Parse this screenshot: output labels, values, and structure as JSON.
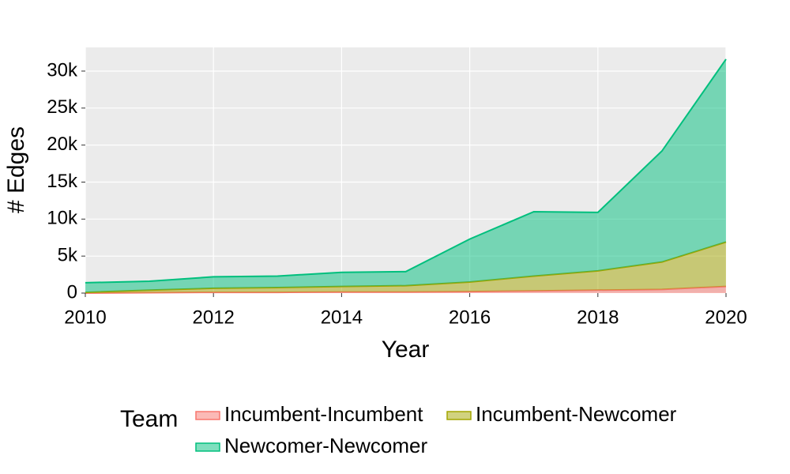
{
  "chart_data": {
    "type": "area",
    "stacked": true,
    "x_label": "Year",
    "y_label": "# Edges",
    "x": [
      2010,
      2011,
      2012,
      2013,
      2014,
      2015,
      2016,
      2017,
      2018,
      2019,
      2020
    ],
    "series": [
      {
        "name": "Incumbent-Incumbent",
        "color": "#F8766D",
        "values": [
          0,
          50,
          100,
          100,
          150,
          150,
          200,
          300,
          400,
          500,
          900
        ]
      },
      {
        "name": "Incumbent-Newcomer",
        "color": "#A3A500",
        "values": [
          100,
          350,
          550,
          650,
          750,
          850,
          1300,
          2000,
          2600,
          3700,
          6000
        ]
      },
      {
        "name": "Newcomer-Newcomer",
        "color": "#00BF7D",
        "values": [
          1300,
          1200,
          1550,
          1550,
          1900,
          1900,
          5800,
          8700,
          7900,
          15000,
          24700
        ]
      }
    ],
    "xlim": [
      2010,
      2020
    ],
    "xticks": [
      2010,
      2012,
      2014,
      2016,
      2018,
      2020
    ],
    "ylim": [
      0,
      33200
    ],
    "yticks": [
      0,
      {
        "value": 5000,
        "label": "5k"
      },
      {
        "value": 10000,
        "label": "10k"
      },
      {
        "value": 15000,
        "label": "15k"
      },
      {
        "value": 20000,
        "label": "20k"
      },
      {
        "value": 25000,
        "label": "25k"
      },
      {
        "value": 30000,
        "label": "30k"
      }
    ],
    "grid": true,
    "legend_title": "Team",
    "legend_position": "bottom"
  }
}
